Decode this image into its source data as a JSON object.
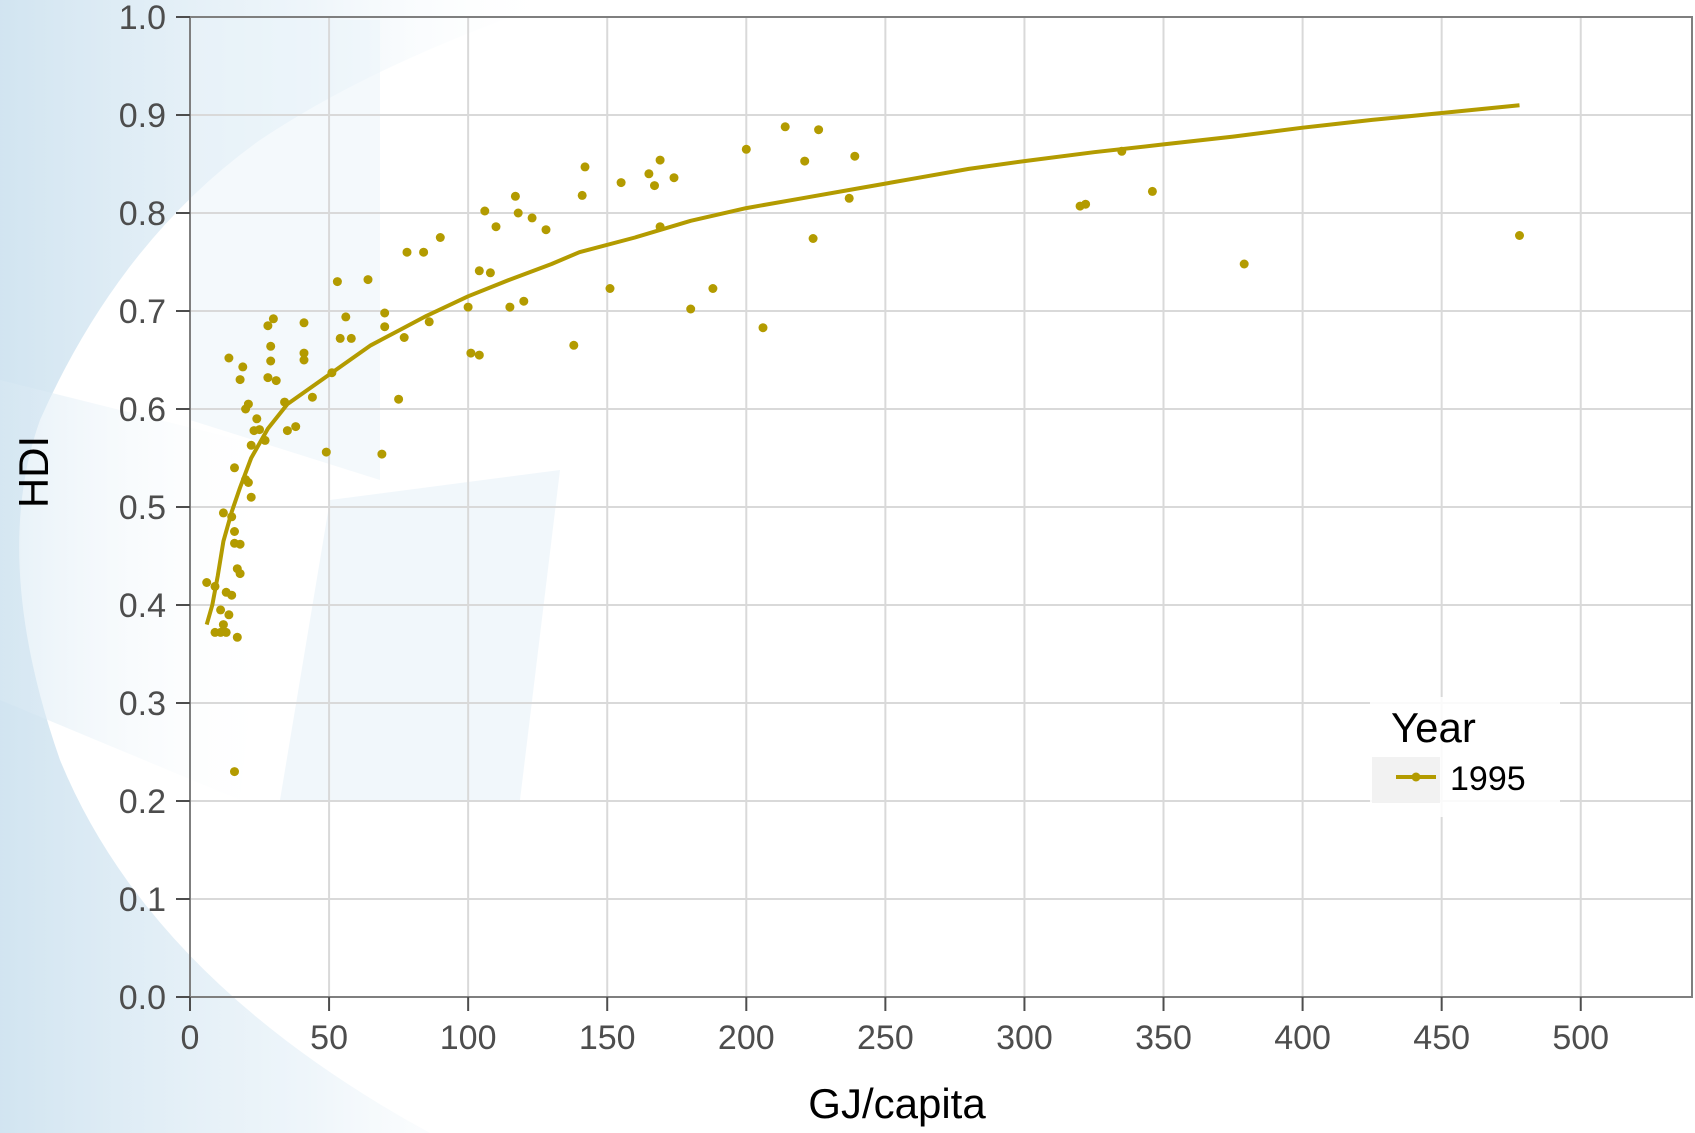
{
  "chart_data": {
    "type": "scatter",
    "xlabel": "GJ/capita",
    "ylabel": "HDI",
    "xlim": [
      0,
      540
    ],
    "ylim": [
      0,
      1
    ],
    "x_ticks": [
      0,
      50,
      100,
      150,
      200,
      250,
      300,
      350,
      400,
      450,
      500
    ],
    "x_tick_labels": [
      "0",
      "50",
      "100",
      "150",
      "200",
      "250",
      "300",
      "350",
      "400",
      "450",
      "500"
    ],
    "y_ticks": [
      0,
      0.1,
      0.2,
      0.3,
      0.4,
      0.5,
      0.6,
      0.7,
      0.8,
      0.9,
      1.0
    ],
    "y_tick_labels": [
      "0.0",
      "0.1",
      "0.2",
      "0.3",
      "0.4",
      "0.5",
      "0.6",
      "0.7",
      "0.8",
      "0.9",
      "1.0"
    ],
    "grid": true,
    "legend": {
      "title": "Year",
      "position": "right",
      "entries": [
        "1995"
      ]
    },
    "color": "#b39b00",
    "series": [
      {
        "name": "1995",
        "points": [
          [
            6,
            0.423
          ],
          [
            9,
            0.419
          ],
          [
            9,
            0.372
          ],
          [
            11,
            0.372
          ],
          [
            11,
            0.395
          ],
          [
            12,
            0.38
          ],
          [
            12,
            0.494
          ],
          [
            13,
            0.413
          ],
          [
            13,
            0.372
          ],
          [
            14,
            0.652
          ],
          [
            14,
            0.39
          ],
          [
            15,
            0.41
          ],
          [
            15,
            0.49
          ],
          [
            16,
            0.475
          ],
          [
            16,
            0.463
          ],
          [
            16,
            0.54
          ],
          [
            17,
            0.437
          ],
          [
            17,
            0.367
          ],
          [
            16,
            0.23
          ],
          [
            18,
            0.462
          ],
          [
            18,
            0.63
          ],
          [
            18,
            0.432
          ],
          [
            19,
            0.643
          ],
          [
            20,
            0.528
          ],
          [
            20,
            0.6
          ],
          [
            21,
            0.525
          ],
          [
            21,
            0.605
          ],
          [
            22,
            0.51
          ],
          [
            22,
            0.563
          ],
          [
            23,
            0.578
          ],
          [
            24,
            0.59
          ],
          [
            25,
            0.579
          ],
          [
            27,
            0.568
          ],
          [
            28,
            0.685
          ],
          [
            28,
            0.632
          ],
          [
            29,
            0.664
          ],
          [
            29,
            0.649
          ],
          [
            30,
            0.692
          ],
          [
            31,
            0.629
          ],
          [
            34,
            0.607
          ],
          [
            35,
            0.578
          ],
          [
            38,
            0.582
          ],
          [
            41,
            0.688
          ],
          [
            41,
            0.657
          ],
          [
            41,
            0.65
          ],
          [
            44,
            0.612
          ],
          [
            49,
            0.556
          ],
          [
            51,
            0.637
          ],
          [
            53,
            0.73
          ],
          [
            54,
            0.672
          ],
          [
            56,
            0.694
          ],
          [
            58,
            0.672
          ],
          [
            64,
            0.732
          ],
          [
            69,
            0.554
          ],
          [
            70,
            0.698
          ],
          [
            70,
            0.684
          ],
          [
            75,
            0.61
          ],
          [
            77,
            0.673
          ],
          [
            78,
            0.76
          ],
          [
            84,
            0.76
          ],
          [
            86,
            0.689
          ],
          [
            90,
            0.775
          ],
          [
            100,
            0.704
          ],
          [
            101,
            0.657
          ],
          [
            104,
            0.655
          ],
          [
            104,
            0.741
          ],
          [
            106,
            0.802
          ],
          [
            108,
            0.739
          ],
          [
            110,
            0.786
          ],
          [
            115,
            0.704
          ],
          [
            117,
            0.817
          ],
          [
            118,
            0.8
          ],
          [
            120,
            0.71
          ],
          [
            123,
            0.795
          ],
          [
            128,
            0.783
          ],
          [
            138,
            0.665
          ],
          [
            141,
            0.818
          ],
          [
            142,
            0.847
          ],
          [
            151,
            0.723
          ],
          [
            155,
            0.831
          ],
          [
            165,
            0.84
          ],
          [
            167,
            0.828
          ],
          [
            169,
            0.854
          ],
          [
            169,
            0.786
          ],
          [
            174,
            0.836
          ],
          [
            180,
            0.702
          ],
          [
            188,
            0.723
          ],
          [
            200,
            0.865
          ],
          [
            206,
            0.683
          ],
          [
            214,
            0.888
          ],
          [
            221,
            0.853
          ],
          [
            224,
            0.774
          ],
          [
            226,
            0.885
          ],
          [
            237,
            0.815
          ],
          [
            239,
            0.858
          ],
          [
            320,
            0.807
          ],
          [
            322,
            0.809
          ],
          [
            335,
            0.863
          ],
          [
            346,
            0.822
          ],
          [
            379,
            0.748
          ],
          [
            478,
            0.777
          ]
        ],
        "trend": [
          [
            6,
            0.38
          ],
          [
            8,
            0.4
          ],
          [
            10,
            0.43
          ],
          [
            12,
            0.465
          ],
          [
            15,
            0.495
          ],
          [
            18,
            0.52
          ],
          [
            22,
            0.55
          ],
          [
            28,
            0.58
          ],
          [
            35,
            0.605
          ],
          [
            45,
            0.625
          ],
          [
            55,
            0.645
          ],
          [
            65,
            0.665
          ],
          [
            75,
            0.68
          ],
          [
            85,
            0.695
          ],
          [
            100,
            0.715
          ],
          [
            115,
            0.732
          ],
          [
            130,
            0.748
          ],
          [
            140,
            0.76
          ],
          [
            160,
            0.775
          ],
          [
            180,
            0.792
          ],
          [
            200,
            0.805
          ],
          [
            220,
            0.815
          ],
          [
            240,
            0.825
          ],
          [
            260,
            0.835
          ],
          [
            280,
            0.845
          ],
          [
            300,
            0.853
          ],
          [
            325,
            0.862
          ],
          [
            350,
            0.87
          ],
          [
            375,
            0.878
          ],
          [
            400,
            0.887
          ],
          [
            425,
            0.895
          ],
          [
            450,
            0.902
          ],
          [
            478,
            0.91
          ]
        ]
      }
    ]
  }
}
